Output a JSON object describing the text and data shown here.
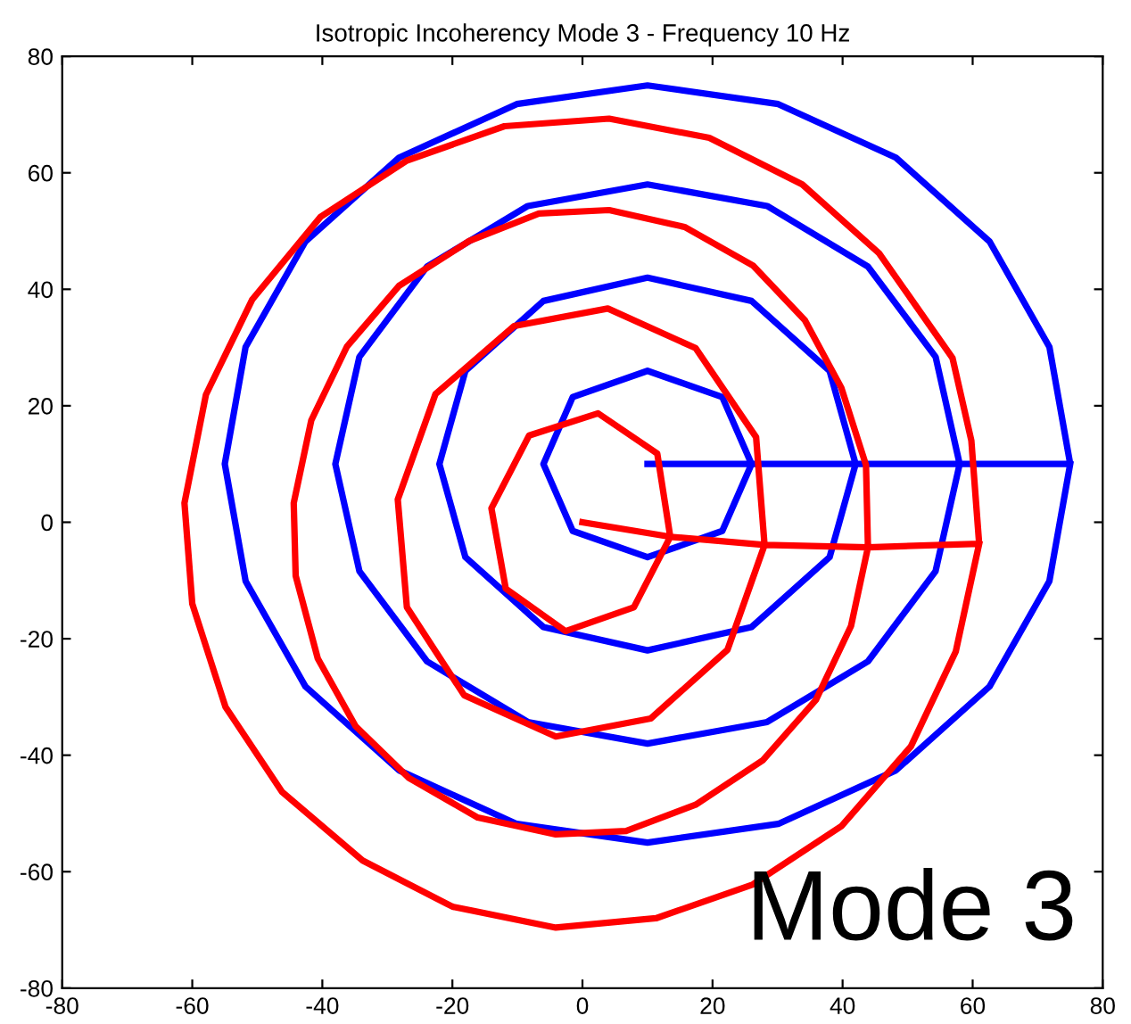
{
  "chart_data": {
    "type": "line",
    "title": "Isotropic Incoherency Mode 3 - Frequency 10 Hz",
    "annotations": [
      "Mode 3"
    ],
    "xlim": [
      -80,
      80
    ],
    "ylim": [
      -80,
      80
    ],
    "xticks": [
      -80,
      -60,
      -40,
      -20,
      0,
      20,
      40,
      60,
      80
    ],
    "yticks": [
      -80,
      -60,
      -40,
      -20,
      0,
      20,
      40,
      60,
      80
    ],
    "grid": false,
    "legend": false,
    "marker": "none",
    "line_style": "solid",
    "series": [
      {
        "color": "#0000ff",
        "x": [
          10,
          26,
          21.5,
          10,
          -1.5,
          -6,
          -1.5,
          10,
          21.5,
          26,
          42,
          38,
          26,
          10,
          -6,
          -18,
          -22,
          -18,
          -6,
          10,
          26,
          38,
          42,
          58,
          54.3,
          43.9,
          28.4,
          10,
          -8.4,
          -23.9,
          -34.3,
          -38,
          -34.3,
          -23.9,
          -8.4,
          10,
          28.4,
          43.9,
          54.3,
          58,
          75,
          71.8,
          62.6,
          48.2,
          30.1,
          10,
          -10.1,
          -28.2,
          -42.6,
          -51.8,
          -55,
          -51.8,
          -42.6,
          -28.2,
          -10.1,
          10,
          30.1,
          48.2,
          62.6,
          71.8,
          75
        ],
        "values": [
          10,
          10,
          21.5,
          26,
          21.5,
          10,
          -1.5,
          -6,
          -1.5,
          10,
          10,
          26,
          38,
          42,
          38,
          26,
          10,
          -6,
          -18,
          -22,
          -18,
          -6,
          10,
          10,
          28.4,
          43.9,
          54.3,
          58,
          54.3,
          43.9,
          28.4,
          10,
          -8.4,
          -23.9,
          -34.3,
          -38,
          -34.3,
          -23.9,
          -8.4,
          10,
          10,
          30.1,
          48.2,
          62.6,
          71.8,
          75,
          71.8,
          62.6,
          48.2,
          30.1,
          10,
          -10.1,
          -28.2,
          -42.6,
          -51.8,
          -55,
          -51.8,
          -42.6,
          -28.2,
          -10.1,
          10
        ]
      },
      {
        "color": "#ff0000",
        "x": [
          0,
          13.5,
          11.5,
          2.4,
          -8.2,
          -14,
          -11.8,
          -2.6,
          7.9,
          13.5,
          28,
          26.7,
          17.4,
          3.9,
          -10.5,
          -22.6,
          -28.4,
          -27,
          -18.2,
          -4.1,
          10.5,
          22.3,
          28,
          43.9,
          43.6,
          39.8,
          34.2,
          26.2,
          15.7,
          4.1,
          -6.7,
          -17.4,
          -28.2,
          -36.2,
          -41.7,
          -44.4,
          -44.1,
          -40.7,
          -34.9,
          -26.7,
          -16.1,
          -4.1,
          6.7,
          17.4,
          27.7,
          35.9,
          41.3,
          43.9,
          61,
          59.8,
          56.9,
          45.6,
          33.8,
          19.5,
          4.1,
          -12,
          -27,
          -40.3,
          -50.8,
          -57.9,
          -61.2,
          -60,
          -54.9,
          -46.2,
          -33.8,
          -20,
          -4.1,
          11.3,
          26.2,
          39.8,
          50.5,
          57.4,
          61
        ],
        "values": [
          0,
          -2.5,
          11.8,
          18.7,
          14.9,
          2.4,
          -11.4,
          -18.7,
          -14.6,
          -2.5,
          -3.9,
          14.6,
          29.9,
          36.7,
          33.7,
          22,
          3.9,
          -14.6,
          -29.7,
          -36.8,
          -33.7,
          -21.9,
          -3.9,
          -4.3,
          9.8,
          23.1,
          34.7,
          44.1,
          50.7,
          53.6,
          53,
          48.3,
          40.6,
          30.2,
          17.5,
          3.3,
          -9.2,
          -23.4,
          -35,
          -43.9,
          -50.7,
          -53.6,
          -53,
          -48.5,
          -40.9,
          -30.5,
          -17.8,
          -4.3,
          -3.7,
          14,
          28.2,
          46.2,
          58,
          66,
          69.3,
          68,
          62.1,
          52.4,
          38.2,
          21.9,
          3.3,
          -14,
          -31.7,
          -46.3,
          -58.1,
          -66,
          -69.6,
          -68,
          -62.2,
          -52.2,
          -38.5,
          -22.2,
          -3.7
        ]
      }
    ]
  }
}
